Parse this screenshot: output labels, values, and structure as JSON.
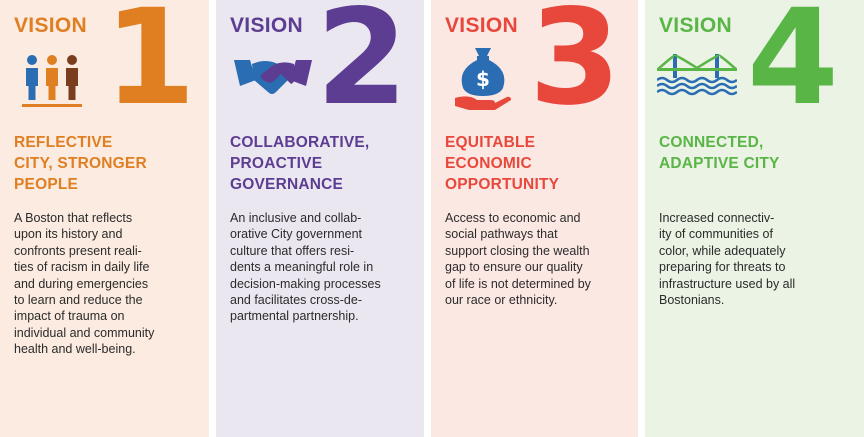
{
  "visions": [
    {
      "label": "VISION",
      "number": "1",
      "icon": "people-icon",
      "color": "#e07f22",
      "heading": "REFLECTIVE\nCITY, STRONGER\nPEOPLE",
      "body": "A Boston that reflects\nupon its history and\nconfronts present reali-\nties of racism in daily life\nand during emergencies\nto learn and reduce the\nimpact of trauma on\nindividual and community\nhealth and well-being."
    },
    {
      "label": "VISION",
      "number": "2",
      "icon": "handshake-icon",
      "color": "#5c3d92",
      "heading": "COLLABORATIVE,\nPROACTIVE\nGOVERNANCE",
      "body": "An inclusive and collab-\norative City government\nculture that offers resi-\ndents a meaningful role in\ndecision-making processes\nand facilitates cross-de-\npartmental partnership."
    },
    {
      "label": "VISION",
      "number": "3",
      "icon": "money-bag-hand-icon",
      "color": "#e8483c",
      "heading": "EQUITABLE\nECONOMIC\nOPPORTUNITY",
      "body": "Access to economic and\nsocial pathways that\nsupport closing the wealth\ngap to ensure our quality\nof life is not determined by\nour race or ethnicity."
    },
    {
      "label": "VISION",
      "number": "4",
      "icon": "bridge-icon",
      "color": "#5ab547",
      "heading": "CONNECTED,\nADAPTIVE CITY",
      "body": "Increased connectiv-\nity of communities of\ncolor, while adequately\npreparing for threats to\ninfrastructure used by all\nBostonians."
    }
  ]
}
